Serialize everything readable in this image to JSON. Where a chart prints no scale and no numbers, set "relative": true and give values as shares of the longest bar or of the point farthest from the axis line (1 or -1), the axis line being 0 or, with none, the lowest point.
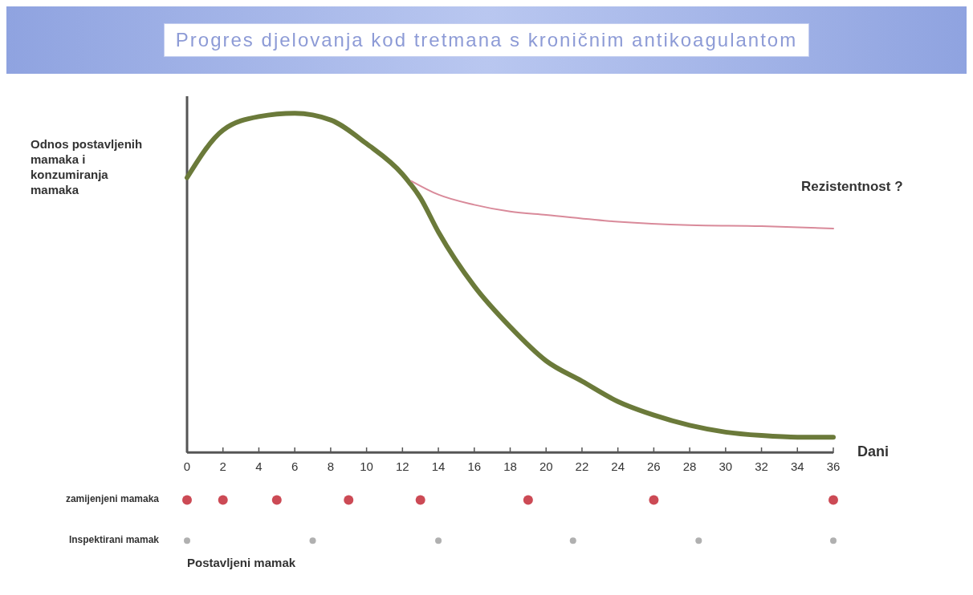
{
  "chart_data": {
    "type": "line",
    "title": "Progres djelovanja kod tretmana s kroničnim antikoagulantom",
    "ylabel": "Odnos postavljenih mamaka i konzumiranja mamaka",
    "xlabel": "Dani",
    "relative": true,
    "xlim": [
      0,
      36
    ],
    "xticks": [
      0,
      2,
      4,
      6,
      8,
      10,
      12,
      14,
      16,
      18,
      20,
      22,
      24,
      26,
      28,
      30,
      32,
      34,
      36
    ],
    "marker": "none",
    "line_style": "solid",
    "series": [
      {
        "color": "#6b7a3a",
        "x": [
          0,
          2,
          4,
          6,
          8,
          10,
          12,
          13,
          14,
          16,
          18,
          20,
          22,
          24,
          26,
          28,
          30,
          32,
          34,
          36
        ],
        "values": [
          0.81,
          0.95,
          0.99,
          1,
          0.98,
          0.91,
          0.82,
          0.75,
          0.65,
          0.49,
          0.37,
          0.27,
          0.21,
          0.15,
          0.11,
          0.08,
          0.06,
          0.05,
          0.045,
          0.045
        ]
      },
      {
        "type": "line",
        "name": "Rezistentnost ?",
        "color": "#d98a9a",
        "x": [
          12.5,
          14,
          16,
          18,
          20,
          24,
          28,
          32,
          36
        ],
        "values": [
          0.8,
          0.76,
          0.73,
          0.71,
          0.7,
          0.68,
          0.67,
          0.667,
          0.66
        ]
      },
      {
        "type": "scatter",
        "name": "zamijenjeni mamaka",
        "color": "#cc4a55",
        "marker": "circle",
        "x": [
          0,
          2,
          5,
          9,
          13,
          19,
          26,
          36
        ],
        "values": [
          -0.14,
          -0.14,
          -0.14,
          -0.14,
          -0.14,
          -0.14,
          -0.14,
          -0.14
        ]
      },
      {
        "type": "scatter",
        "name": "Inspektirani mamak",
        "color": "#b0b0b0",
        "marker": "circle",
        "x": [
          0,
          7,
          14,
          21.5,
          28.5,
          36
        ],
        "values": [
          -0.26,
          -0.26,
          -0.26,
          -0.26,
          -0.26,
          -0.26
        ]
      }
    ],
    "annotations": [
      "Postavljeni mamak"
    ]
  }
}
